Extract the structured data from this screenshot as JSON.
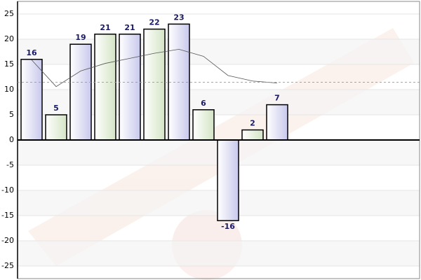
{
  "chart_data": {
    "type": "bar",
    "categories": [
      null,
      null,
      null,
      null,
      null,
      null,
      null,
      null,
      null,
      null,
      null
    ],
    "series": [
      {
        "type": "bar",
        "colors": [
          "#c8c8ec",
          "#d4e4c4"
        ],
        "values": [
          16,
          5,
          19,
          21,
          21,
          22,
          23,
          6,
          -16,
          2,
          7
        ]
      },
      {
        "type": "line",
        "color": "#555555",
        "values": [
          15.9,
          10.6,
          13.7,
          15.2,
          16.2,
          17.2,
          18,
          16.6,
          12.8,
          11.7,
          11.3
        ]
      }
    ],
    "reference_line": {
      "value": 11.45,
      "color": "#999999"
    },
    "ylim": [
      -27.5,
      27.5
    ],
    "yticks": [
      -25,
      -20,
      -15,
      -10,
      -5,
      0,
      5,
      10,
      15,
      20,
      25
    ],
    "grid": true
  }
}
